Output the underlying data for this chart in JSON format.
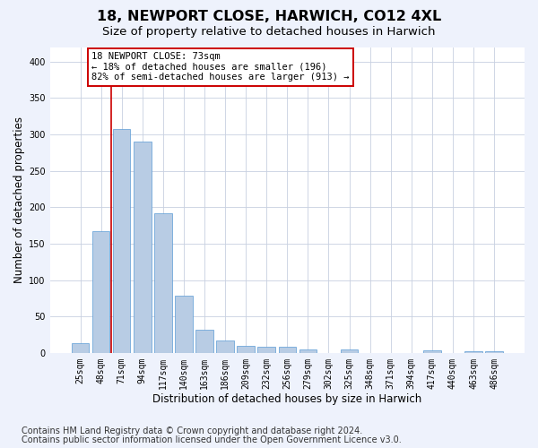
{
  "title1": "18, NEWPORT CLOSE, HARWICH, CO12 4XL",
  "title2": "Size of property relative to detached houses in Harwich",
  "xlabel": "Distribution of detached houses by size in Harwich",
  "ylabel": "Number of detached properties",
  "categories": [
    "25sqm",
    "48sqm",
    "71sqm",
    "94sqm",
    "117sqm",
    "140sqm",
    "163sqm",
    "186sqm",
    "209sqm",
    "232sqm",
    "256sqm",
    "279sqm",
    "302sqm",
    "325sqm",
    "348sqm",
    "371sqm",
    "394sqm",
    "417sqm",
    "440sqm",
    "463sqm",
    "486sqm"
  ],
  "values": [
    13,
    167,
    307,
    290,
    192,
    78,
    32,
    17,
    10,
    8,
    9,
    5,
    0,
    5,
    0,
    0,
    0,
    3,
    0,
    2,
    2
  ],
  "bar_color": "#b8cce4",
  "bar_edge_color": "#5b9bd5",
  "vline_color": "#cc0000",
  "vline_pos": 1.5,
  "annotation_text": "18 NEWPORT CLOSE: 73sqm\n← 18% of detached houses are smaller (196)\n82% of semi-detached houses are larger (913) →",
  "annotation_box_facecolor": "#ffffff",
  "annotation_box_edgecolor": "#cc0000",
  "footnote1": "Contains HM Land Registry data © Crown copyright and database right 2024.",
  "footnote2": "Contains public sector information licensed under the Open Government Licence v3.0.",
  "bg_color": "#eef2fc",
  "plot_bg_color": "#ffffff",
  "ylim_max": 420,
  "yticks": [
    0,
    50,
    100,
    150,
    200,
    250,
    300,
    350,
    400
  ],
  "title1_fontsize": 11.5,
  "title2_fontsize": 9.5,
  "xlabel_fontsize": 8.5,
  "ylabel_fontsize": 8.5,
  "tick_fontsize": 7,
  "footnote_fontsize": 7,
  "annot_fontsize": 7.5
}
